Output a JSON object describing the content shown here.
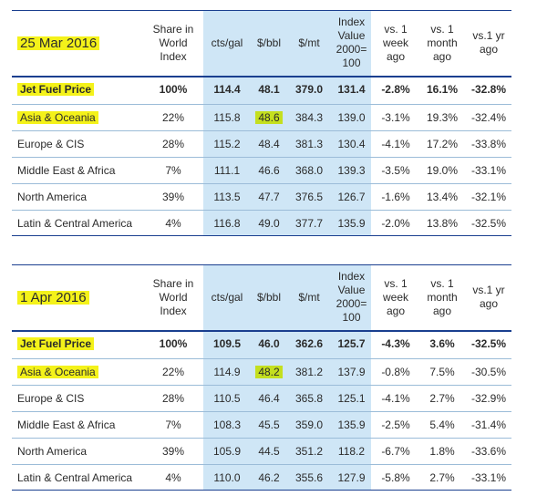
{
  "headers": {
    "share": "Share in World Index",
    "cts": "cts/gal",
    "bbl": "$/bbl",
    "mt": "$/mt",
    "index": "Index Value 2000= 100",
    "week": "vs. 1 week ago",
    "month": "vs. 1 month ago",
    "year": "vs.1 yr ago"
  },
  "tables": [
    {
      "date": "25 Mar 2016",
      "jet": {
        "label": "Jet Fuel Price",
        "share": "100%",
        "cts": "114.4",
        "bbl": "48.1",
        "mt": "379.0",
        "index": "131.4",
        "week": "-2.8%",
        "month": "16.1%",
        "year": "-32.8%"
      },
      "rows": [
        {
          "region": "Asia & Oceania",
          "share": "22%",
          "cts": "115.8",
          "bbl": "48.6",
          "mt": "384.3",
          "index": "139.0",
          "week": "-3.1%",
          "month": "19.3%",
          "year": "-32.4%"
        },
        {
          "region": "Europe & CIS",
          "share": "28%",
          "cts": "115.2",
          "bbl": "48.4",
          "mt": "381.3",
          "index": "130.4",
          "week": "-4.1%",
          "month": "17.2%",
          "year": "-33.8%"
        },
        {
          "region": "Middle East & Africa",
          "share": "7%",
          "cts": "111.1",
          "bbl": "46.6",
          "mt": "368.0",
          "index": "139.3",
          "week": "-3.5%",
          "month": "19.0%",
          "year": "-33.1%"
        },
        {
          "region": "North America",
          "share": "39%",
          "cts": "113.5",
          "bbl": "47.7",
          "mt": "376.5",
          "index": "126.7",
          "week": "-1.6%",
          "month": "13.4%",
          "year": "-32.1%"
        },
        {
          "region": "Latin & Central America",
          "share": "4%",
          "cts": "116.8",
          "bbl": "49.0",
          "mt": "377.7",
          "index": "135.9",
          "week": "-2.0%",
          "month": "13.8%",
          "year": "-32.5%"
        }
      ]
    },
    {
      "date": "1 Apr 2016",
      "jet": {
        "label": "Jet Fuel Price",
        "share": "100%",
        "cts": "109.5",
        "bbl": "46.0",
        "mt": "362.6",
        "index": "125.7",
        "week": "-4.3%",
        "month": "3.6%",
        "year": "-32.5%"
      },
      "rows": [
        {
          "region": "Asia & Oceania",
          "share": "22%",
          "cts": "114.9",
          "bbl": "48.2",
          "mt": "381.2",
          "index": "137.9",
          "week": "-0.8%",
          "month": "7.5%",
          "year": "-30.5%"
        },
        {
          "region": "Europe & CIS",
          "share": "28%",
          "cts": "110.5",
          "bbl": "46.4",
          "mt": "365.8",
          "index": "125.1",
          "week": "-4.1%",
          "month": "2.7%",
          "year": "-32.9%"
        },
        {
          "region": "Middle East & Africa",
          "share": "7%",
          "cts": "108.3",
          "bbl": "45.5",
          "mt": "359.0",
          "index": "135.9",
          "week": "-2.5%",
          "month": "5.4%",
          "year": "-31.4%"
        },
        {
          "region": "North America",
          "share": "39%",
          "cts": "105.9",
          "bbl": "44.5",
          "mt": "351.2",
          "index": "118.2",
          "week": "-6.7%",
          "month": "1.8%",
          "year": "-33.6%"
        },
        {
          "region": "Latin & Central America",
          "share": "4%",
          "cts": "110.0",
          "bbl": "46.2",
          "mt": "355.6",
          "index": "127.9",
          "week": "-5.8%",
          "month": "2.7%",
          "year": "-33.1%"
        }
      ]
    }
  ]
}
